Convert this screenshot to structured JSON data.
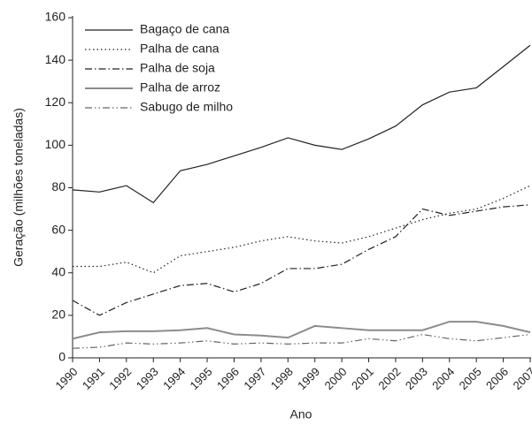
{
  "chart_data": {
    "type": "line",
    "x_label": "Ano",
    "y_label": "Geração (milhões toneladas)",
    "categories": [
      "1990",
      "1991",
      "1992",
      "1993",
      "1994",
      "1995",
      "1996",
      "1997",
      "1998",
      "1999",
      "2000",
      "2001",
      "2002",
      "2003",
      "2004",
      "2005",
      "2006",
      "2007"
    ],
    "series": [
      {
        "name": "Bagaço de cana",
        "color": "#222222",
        "dash": "solid",
        "values": [
          79,
          78,
          81,
          73,
          88,
          91,
          95,
          99,
          103.5,
          100,
          98,
          103,
          109,
          119,
          125,
          127,
          137,
          147
        ]
      },
      {
        "name": "Palha de cana",
        "color": "#222222",
        "dash": "dotted",
        "values": [
          43,
          43,
          45,
          40,
          48,
          50,
          52,
          55,
          57,
          55,
          54,
          57,
          61,
          65,
          68,
          70,
          75,
          81
        ]
      },
      {
        "name": "Palha de soja",
        "color": "#222222",
        "dash": "dashdot",
        "values": [
          27,
          20,
          26,
          30,
          34,
          35,
          31,
          35,
          42,
          42,
          44,
          51,
          57,
          70,
          67,
          69,
          71,
          72
        ]
      },
      {
        "name": "Palha de arroz",
        "color": "#8c8c8c",
        "dash": "solid",
        "values": [
          9,
          12,
          12.5,
          12.5,
          13,
          14,
          11,
          10.5,
          9.5,
          15,
          14,
          13,
          13,
          13,
          17,
          17,
          15,
          12
        ]
      },
      {
        "name": "Sabugo de milho",
        "color": "#666666",
        "dash": "dashdotdot",
        "values": [
          4.5,
          5,
          7,
          6.5,
          7,
          8,
          6.5,
          7,
          6.5,
          7,
          7,
          9,
          8,
          11,
          9,
          8,
          9.5,
          11
        ]
      }
    ],
    "ylim": [
      0,
      160
    ],
    "yticks": [
      0,
      20,
      40,
      60,
      80,
      100,
      120,
      140,
      160
    ],
    "legend": "upper left"
  }
}
